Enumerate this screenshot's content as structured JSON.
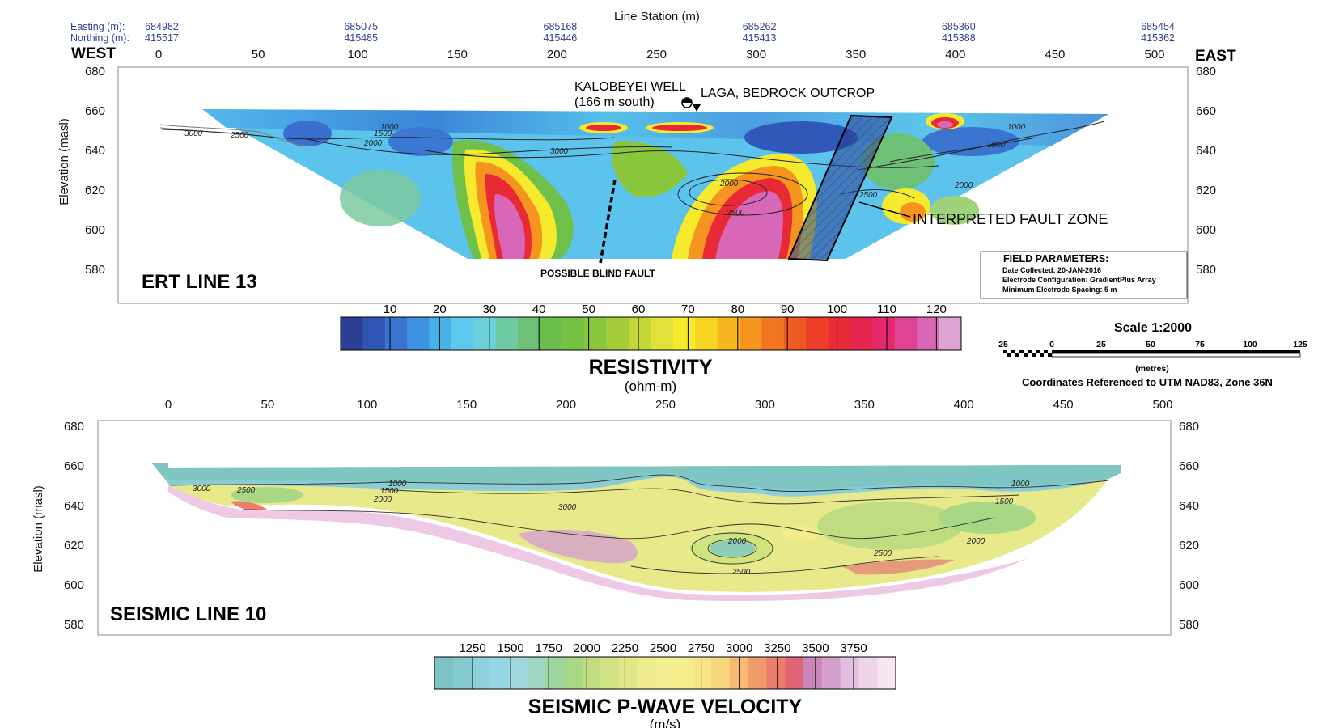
{
  "ert": {
    "top_axis_title": "Line Station (m)",
    "easting_label": "Easting (m):",
    "northing_label": "Northing (m):",
    "coords": [
      {
        "station": 0,
        "easting": "684982",
        "northing": "415517"
      },
      {
        "station": 100,
        "easting": "685075",
        "northing": "415485"
      },
      {
        "station": 200,
        "easting": "685168",
        "northing": "415446"
      },
      {
        "station": 300,
        "easting": "685262",
        "northing": "415413"
      },
      {
        "station": 400,
        "easting": "685360",
        "northing": "415388"
      },
      {
        "station": 500,
        "easting": "685454",
        "northing": "415362"
      }
    ],
    "west_label": "WEST",
    "east_label": "EAST",
    "station_ticks": [
      0,
      50,
      100,
      150,
      200,
      250,
      300,
      350,
      400,
      450,
      500
    ],
    "elevation_ticks": [
      680,
      660,
      640,
      620,
      600,
      580
    ],
    "y_axis_title": "Elevation (masl)",
    "title": "ERT LINE 13",
    "annotations": {
      "well_line1": "KALOBEYEI WELL",
      "well_line2": "(166 m south)",
      "outcrop": "LAGA, BEDROCK OUTCROP",
      "fault_zone": "INTERPRETED FAULT ZONE",
      "blind_fault": "POSSIBLE BLIND FAULT"
    },
    "contour_labels": [
      "3000",
      "2500",
      "1000",
      "1500",
      "2000",
      "3000",
      "2000",
      "2500",
      "2500",
      "2000",
      "1000",
      "1500"
    ],
    "field_parameters": {
      "title": "FIELD PARAMETERS:",
      "date": "Date Collected: 20-JAN-2016",
      "config": "Electrode Configuration: GradientPlus Array",
      "spacing": "Minimum Electrode Spacing: 5 m"
    }
  },
  "resistivity_scale": {
    "ticks": [
      "10",
      "20",
      "30",
      "40",
      "50",
      "60",
      "70",
      "80",
      "90",
      "100",
      "110",
      "120"
    ],
    "title": "RESISTIVITY",
    "unit": "(ohm-m)",
    "colors": [
      "#2c3f93",
      "#2f55b5",
      "#3a74d0",
      "#3e94e2",
      "#45b2ea",
      "#5bc8ec",
      "#6dcfd8",
      "#6fc9a2",
      "#6ec076",
      "#6bbd4c",
      "#72c13f",
      "#8ac63b",
      "#a5cd3a",
      "#c3d63a",
      "#e2e13b",
      "#f5ea2c",
      "#f8d422",
      "#f8b51f",
      "#f5951f",
      "#f2751f",
      "#ef5a22",
      "#eb3f27",
      "#e82a36",
      "#e5254e",
      "#e5276d",
      "#e04295",
      "#d867b7",
      "#dca4d2"
    ]
  },
  "scale_bar": {
    "title": "Scale 1:2000",
    "ticks": [
      "25",
      "0",
      "25",
      "50",
      "75",
      "100",
      "125"
    ],
    "unit": "(metres)",
    "crs": "Coordinates Referenced to UTM NAD83, Zone 36N"
  },
  "seismic": {
    "station_ticks": [
      0,
      50,
      100,
      150,
      200,
      250,
      300,
      350,
      400,
      450,
      500
    ],
    "elevation_ticks": [
      680,
      660,
      640,
      620,
      600,
      580
    ],
    "y_axis_title": "Elevation (masl)",
    "title": "SEISMIC LINE 10",
    "contour_labels": [
      "3000",
      "2500",
      "1000",
      "1500",
      "2000",
      "3000",
      "2000",
      "2500",
      "2500",
      "2000",
      "1000",
      "1500"
    ]
  },
  "velocity_scale": {
    "ticks": [
      "1250",
      "1500",
      "1750",
      "2000",
      "2250",
      "2500",
      "2750",
      "3000",
      "3250",
      "3500",
      "3750"
    ],
    "title": "SEISMIC P-WAVE VELOCITY",
    "unit": "(m/s)",
    "colors": [
      "#7ec4c3",
      "#86cad0",
      "#8fd0dd",
      "#97d4e4",
      "#9fd8df",
      "#9ed7c2",
      "#9fd69f",
      "#a8d785",
      "#bfdd80",
      "#d2e285",
      "#e1e788",
      "#edeb8c",
      "#f3ee8f",
      "#f5ec8c",
      "#f7e486",
      "#f8d47c",
      "#f6ba72",
      "#f19b6a",
      "#ec7d6a",
      "#e26575",
      "#c987b9",
      "#d49fcd",
      "#e2bfe0",
      "#eed5ea",
      "#f5e6f1"
    ]
  }
}
